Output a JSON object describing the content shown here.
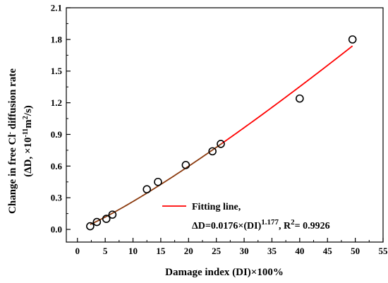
{
  "chart_data": {
    "type": "scatter",
    "xlabel": "Damage index (DI)×100%",
    "ylabel_line1": {
      "prefix": "Change in free Cl",
      "sup": "-",
      "suffix": " diffusion rate"
    },
    "ylabel_line2": {
      "prefix": "(ΔD, ×10",
      "sup1": "-11",
      "mid": "m",
      "sup2": "2",
      "suffix": "/s)"
    },
    "xlim": [
      -2,
      55
    ],
    "ylim": [
      -0.12,
      2.1
    ],
    "x_ticks": [
      0,
      5,
      10,
      15,
      20,
      25,
      30,
      35,
      40,
      45,
      50,
      55
    ],
    "x_tick_labels": [
      "0",
      "5",
      "10",
      "15",
      "20",
      "25",
      "30",
      "35",
      "40",
      "45",
      "50",
      "55"
    ],
    "y_ticks": [
      0.0,
      0.3,
      0.6,
      0.9,
      1.2,
      1.5,
      1.8,
      2.1
    ],
    "y_tick_labels": [
      "0.0",
      "0.3",
      "0.6",
      "0.9",
      "1.2",
      "1.5",
      "1.8",
      "2.1"
    ],
    "series": [
      {
        "kind": "points",
        "marker": "open-circle",
        "color": "#000000",
        "points": [
          {
            "x": 2.3,
            "y": 0.03
          },
          {
            "x": 3.5,
            "y": 0.07
          },
          {
            "x": 5.2,
            "y": 0.1
          },
          {
            "x": 6.3,
            "y": 0.14
          },
          {
            "x": 12.5,
            "y": 0.38
          },
          {
            "x": 14.5,
            "y": 0.45
          },
          {
            "x": 19.5,
            "y": 0.61
          },
          {
            "x": 24.3,
            "y": 0.74
          },
          {
            "x": 25.8,
            "y": 0.81
          },
          {
            "x": 40.0,
            "y": 1.24
          },
          {
            "x": 49.5,
            "y": 1.8
          }
        ]
      },
      {
        "kind": "fit",
        "name": "Fitting line,",
        "equation": {
          "prefix": "ΔD=0.0176×(DI)",
          "sup1": "1.177",
          "mid": ", R",
          "sup2": "2",
          "suffix": "= 0.9926"
        },
        "coefficient": 0.0176,
        "exponent": 1.177,
        "x_range": [
          2.3,
          49.5
        ],
        "color_low": "#8b3a0e",
        "color_high": "#ff0000",
        "color_split_x": 26
      }
    ],
    "legend_position": "bottom-right",
    "grid": false
  }
}
